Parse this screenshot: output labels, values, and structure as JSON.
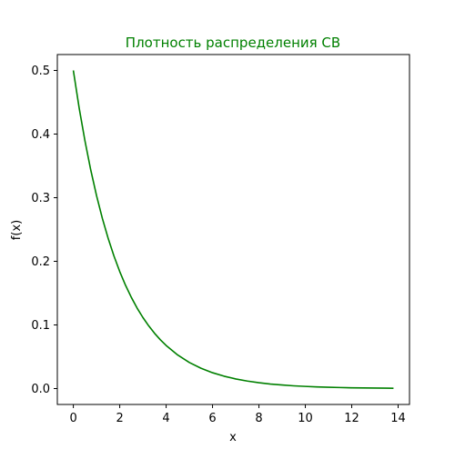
{
  "chart_data": {
    "type": "line",
    "title": "Плотность распределения СВ",
    "xlabel": "x",
    "ylabel": "f(x)",
    "xlim": [
      -0.69,
      14.49
    ],
    "ylim": [
      -0.025,
      0.525
    ],
    "xticks": [
      0,
      2,
      4,
      6,
      8,
      10,
      12,
      14
    ],
    "yticks": [
      0.0,
      0.1,
      0.2,
      0.3,
      0.4,
      0.5
    ],
    "ytick_labels": [
      "0.0",
      "0.1",
      "0.2",
      "0.3",
      "0.4",
      "0.5"
    ],
    "grid": false,
    "colors": {
      "series": "#008000",
      "title": "#008000",
      "axes": "#000000"
    },
    "series": [
      {
        "color": "#008000",
        "x": [
          0,
          0.25,
          0.5,
          0.75,
          1,
          1.25,
          1.5,
          1.75,
          2,
          2.25,
          2.5,
          2.75,
          3,
          3.25,
          3.5,
          3.75,
          4,
          4.5,
          5,
          5.5,
          6,
          6.5,
          7,
          7.5,
          8,
          8.5,
          9,
          9.5,
          10,
          10.5,
          11,
          11.5,
          12,
          12.5,
          13,
          13.5,
          13.8
        ],
        "y": [
          0.5,
          0.4412,
          0.3894,
          0.3436,
          0.3033,
          0.2676,
          0.2362,
          0.2084,
          0.1839,
          0.1623,
          0.1433,
          0.1264,
          0.1116,
          0.0985,
          0.0869,
          0.0767,
          0.0677,
          0.0527,
          0.041,
          0.032,
          0.0249,
          0.0194,
          0.0151,
          0.0118,
          0.0092,
          0.0071,
          0.0056,
          0.0043,
          0.0034,
          0.0026,
          0.002,
          0.0016,
          0.0012,
          0.001,
          0.0008,
          0.0006,
          0.0005
        ]
      }
    ]
  }
}
